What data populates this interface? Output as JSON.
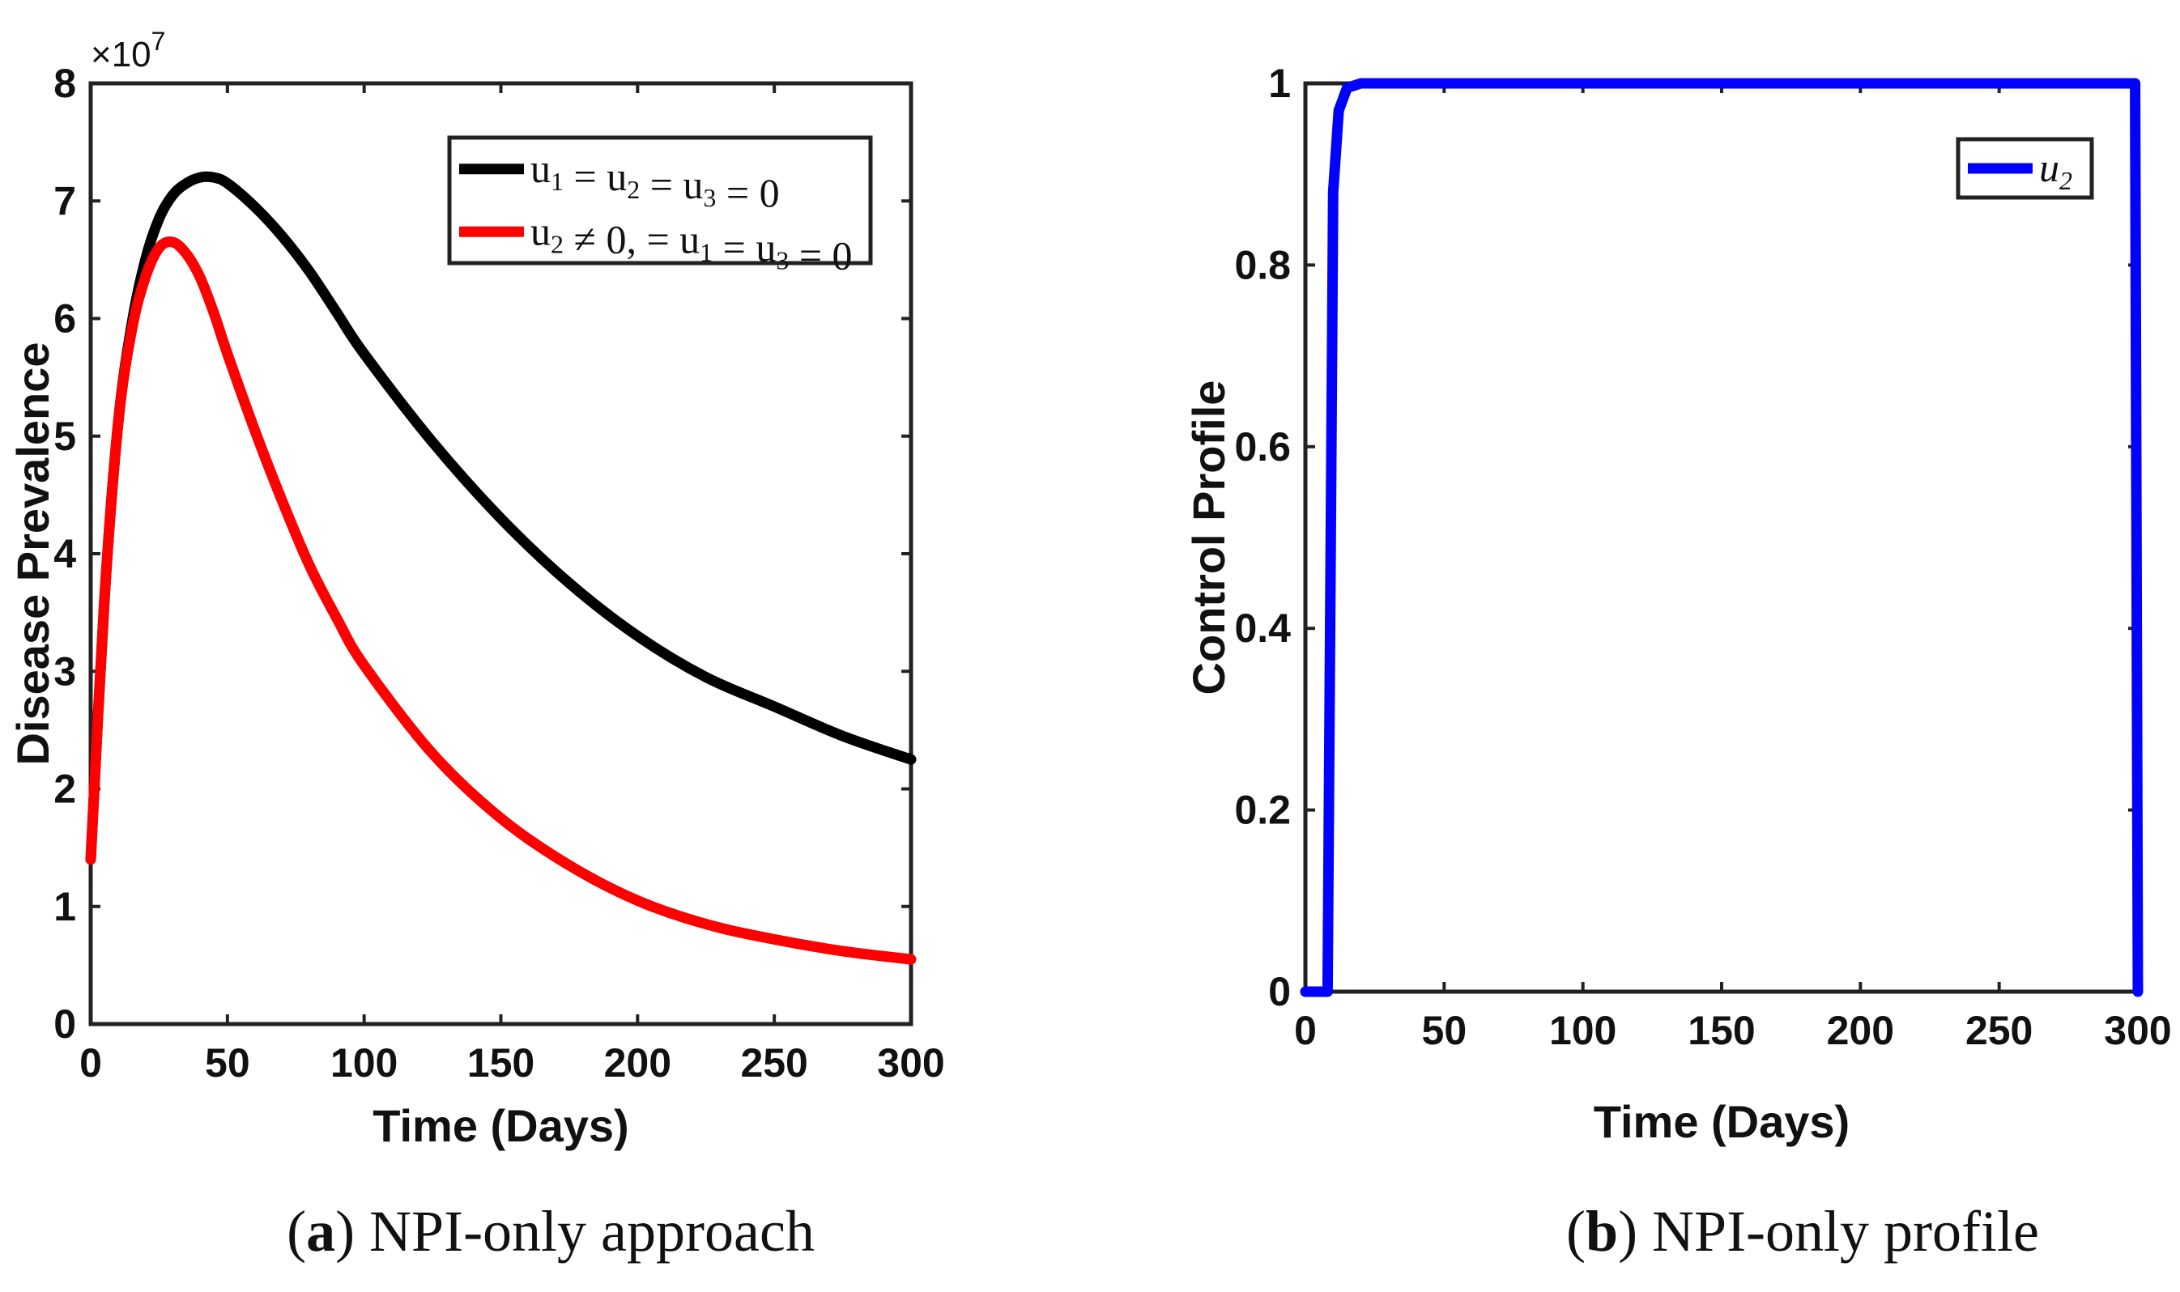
{
  "chart_data": [
    {
      "id": "a",
      "type": "line",
      "xlabel": "Time (Days)",
      "ylabel": "Disease Prevalence",
      "y_multiplier": "×10",
      "y_multiplier_exp": "7",
      "xlim": [
        0,
        300
      ],
      "ylim": [
        0,
        8
      ],
      "xticks": [
        "0",
        "50",
        "100",
        "150",
        "200",
        "250",
        "300"
      ],
      "yticks": [
        "0",
        "1",
        "2",
        "3",
        "4",
        "5",
        "6",
        "7",
        "8"
      ],
      "legend_position": "top-right",
      "caption_letter": "a",
      "caption_text": "NPI-only approach",
      "series": [
        {
          "name": "u1 = u2 = u3 = 0",
          "legend_parts": [
            [
              "u",
              "1"
            ],
            [
              " = u",
              "2"
            ],
            [
              " = u",
              "3"
            ],
            [
              " = 0",
              ""
            ]
          ],
          "color": "#000000",
          "x": [
            0,
            5,
            10,
            15,
            20,
            25,
            30,
            35,
            40,
            45,
            50,
            60,
            70,
            80,
            90,
            100,
            125,
            150,
            175,
            200,
            225,
            250,
            275,
            300
          ],
          "y": [
            1.4,
            3.6,
            5.1,
            5.95,
            6.5,
            6.85,
            7.05,
            7.15,
            7.2,
            7.2,
            7.15,
            6.95,
            6.7,
            6.4,
            6.05,
            5.7,
            4.95,
            4.3,
            3.75,
            3.3,
            2.95,
            2.7,
            2.45,
            2.25
          ]
        },
        {
          "name": "u2 ≠ 0, = u1 = u3 = 0",
          "legend_parts": [
            [
              "u",
              "2"
            ],
            [
              " ≠ 0, = u",
              "1"
            ],
            [
              " = u",
              "3"
            ],
            [
              " = 0",
              ""
            ]
          ],
          "color": "#ff0000",
          "x": [
            0,
            5,
            10,
            15,
            20,
            25,
            30,
            35,
            40,
            45,
            50,
            60,
            70,
            80,
            90,
            100,
            125,
            150,
            175,
            200,
            225,
            250,
            275,
            300
          ],
          "y": [
            1.4,
            3.6,
            5.1,
            5.9,
            6.35,
            6.6,
            6.65,
            6.55,
            6.35,
            6.05,
            5.7,
            5.05,
            4.45,
            3.9,
            3.45,
            3.05,
            2.3,
            1.75,
            1.35,
            1.05,
            0.85,
            0.72,
            0.62,
            0.55
          ]
        }
      ]
    },
    {
      "id": "b",
      "type": "line",
      "xlabel": "Time (Days)",
      "ylabel": "Control Profile",
      "xlim": [
        0,
        300
      ],
      "ylim": [
        0,
        1
      ],
      "xticks": [
        "0",
        "50",
        "100",
        "150",
        "200",
        "250",
        "300"
      ],
      "yticks": [
        "0",
        "0.2",
        "0.4",
        "0.6",
        "0.8",
        "1"
      ],
      "legend_position": "top-right",
      "caption_letter": "b",
      "caption_text": "NPI-only profile",
      "series": [
        {
          "name": "u2",
          "legend_parts": [
            [
              "u",
              "2"
            ]
          ],
          "color": "#0000ff",
          "x": [
            0,
            8,
            10,
            12,
            15,
            20,
            299,
            300
          ],
          "y": [
            0,
            0,
            0.88,
            0.97,
            0.995,
            1,
            1,
            0
          ]
        }
      ]
    }
  ]
}
